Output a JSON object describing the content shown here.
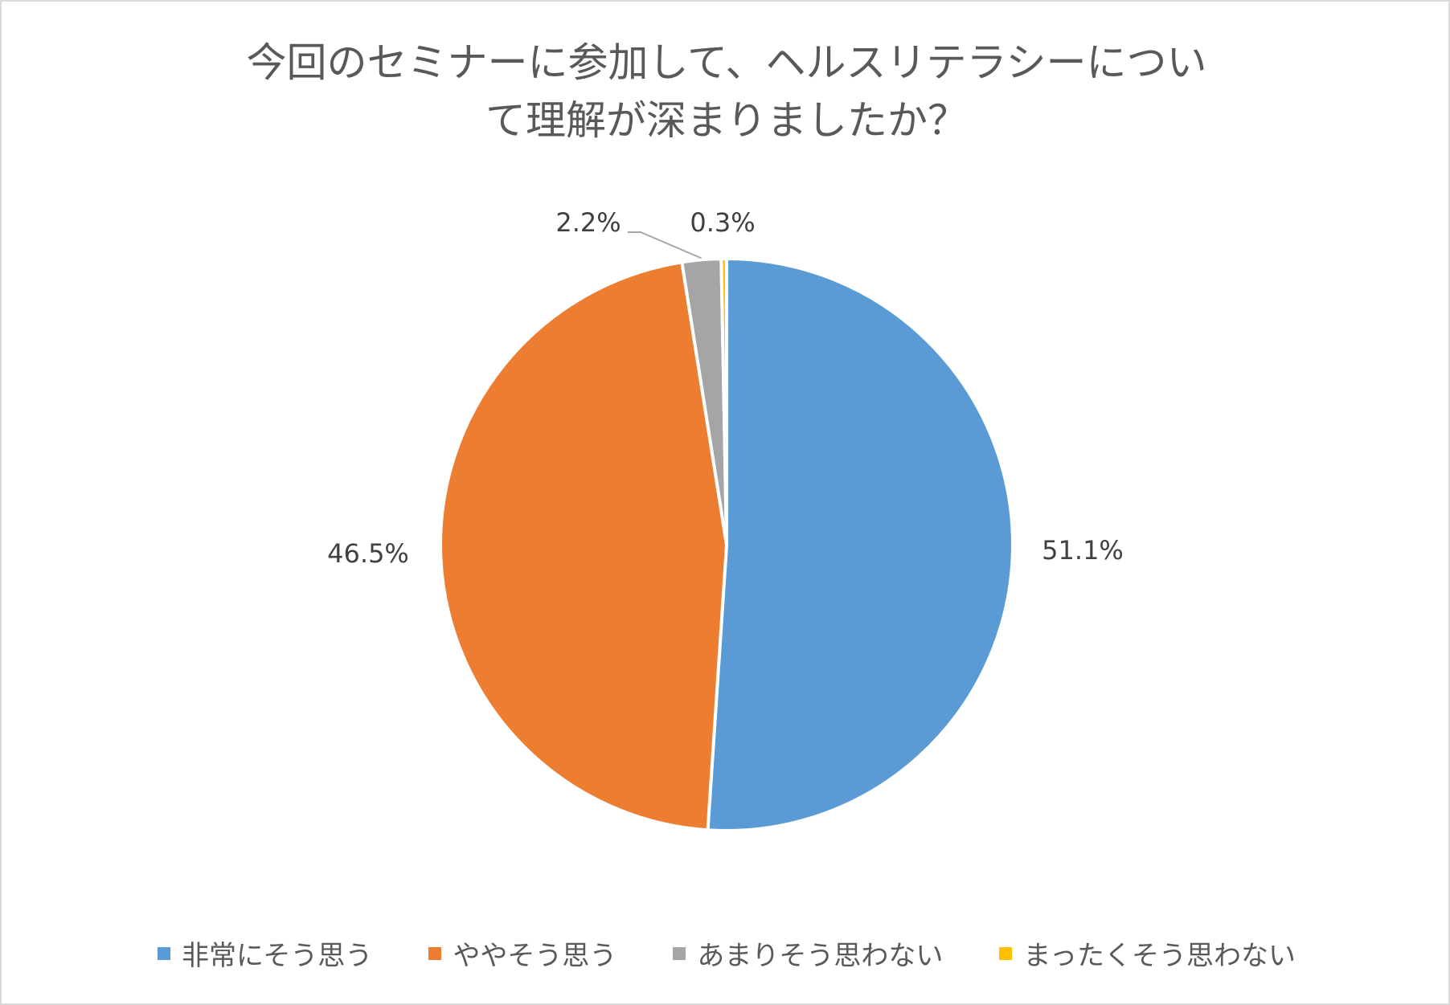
{
  "chart_data": {
    "type": "pie",
    "title": "今回のセミナーに参加して、ヘルスリテラシーについて理解が深まりましたか？",
    "title_lines": [
      "今回のセミナーに参加して、ヘルスリテラシーについ",
      "て理解が深まりましたか？"
    ],
    "categories": [
      "非常にそう思う",
      "ややそう思う",
      "あまりそう思わない",
      "まったくそう思わない"
    ],
    "values": [
      51.1,
      46.5,
      2.2,
      0.3
    ],
    "labels": [
      "51.1%",
      "46.5%",
      "2.2%",
      "0.3%"
    ],
    "colors": [
      "#5b9bd5",
      "#ed7d31",
      "#a5a5a5",
      "#ffc000"
    ],
    "start_angle": "12 o'clock",
    "direction": "clockwise",
    "legend_position": "bottom"
  }
}
